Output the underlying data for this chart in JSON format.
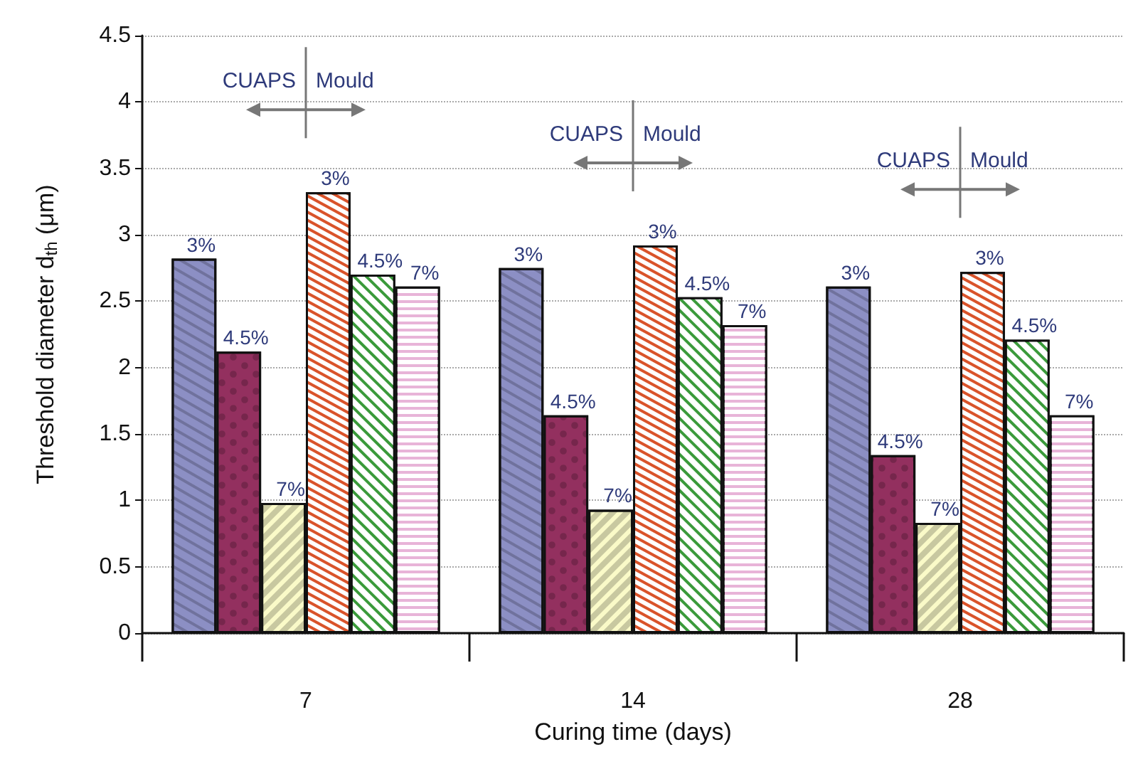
{
  "chart_data": {
    "type": "bar",
    "xlabel": "Curing time (days)",
    "ylabel": "Threshold diameter d$_{th}$ (μm)",
    "categories": [
      "7",
      "14",
      "28"
    ],
    "series": [
      {
        "name": "3%",
        "color": "#8c8fc4",
        "values": [
          2.82,
          2.75,
          2.61
        ]
      },
      {
        "name": "4.5%",
        "color": "#93305f",
        "values": [
          2.12,
          1.64,
          1.34
        ]
      },
      {
        "name": "7%",
        "color": "#fafac8",
        "values": [
          0.98,
          0.93,
          0.83
        ]
      },
      {
        "name": "3%",
        "color": "#d9532a",
        "values": [
          3.32,
          2.92,
          2.72
        ]
      },
      {
        "name": "4.5%",
        "color": "#3a9a3a",
        "values": [
          2.7,
          2.53,
          2.21
        ]
      },
      {
        "name": "7%",
        "color": "#e8b4d8",
        "values": [
          2.61,
          2.32,
          1.64
        ]
      }
    ],
    "ylim": [
      0,
      4.5
    ],
    "yticks": [
      0,
      0.5,
      1,
      1.5,
      2,
      2.5,
      3,
      3.5,
      4,
      4.5
    ],
    "grid": "y",
    "annotations": [
      "CUAPS",
      "Mould",
      "CUAPS",
      "Mould",
      "CUAPS",
      "Mould"
    ]
  }
}
